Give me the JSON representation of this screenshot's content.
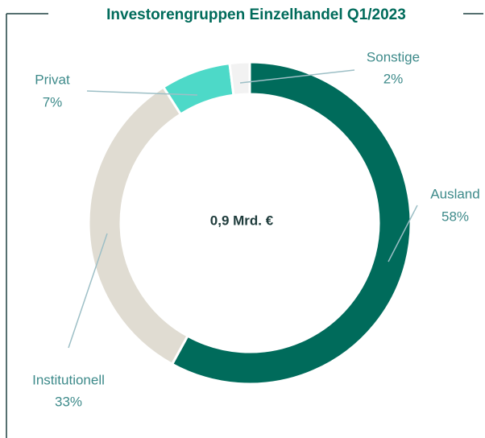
{
  "chart_data": {
    "type": "pie",
    "title": "Investorengruppen Einzelhandel Q1/2023",
    "center_label": "0,9 Mrd. €",
    "categories": [
      "Ausland",
      "Institutionell",
      "Privat",
      "Sonstige"
    ],
    "values": [
      58,
      33,
      7,
      2
    ],
    "value_labels": [
      "58%",
      "33%",
      "7%",
      "2%"
    ],
    "colors": [
      "#006b5b",
      "#e0dcd2",
      "#4dd9c8",
      "#f2f2f2"
    ]
  }
}
